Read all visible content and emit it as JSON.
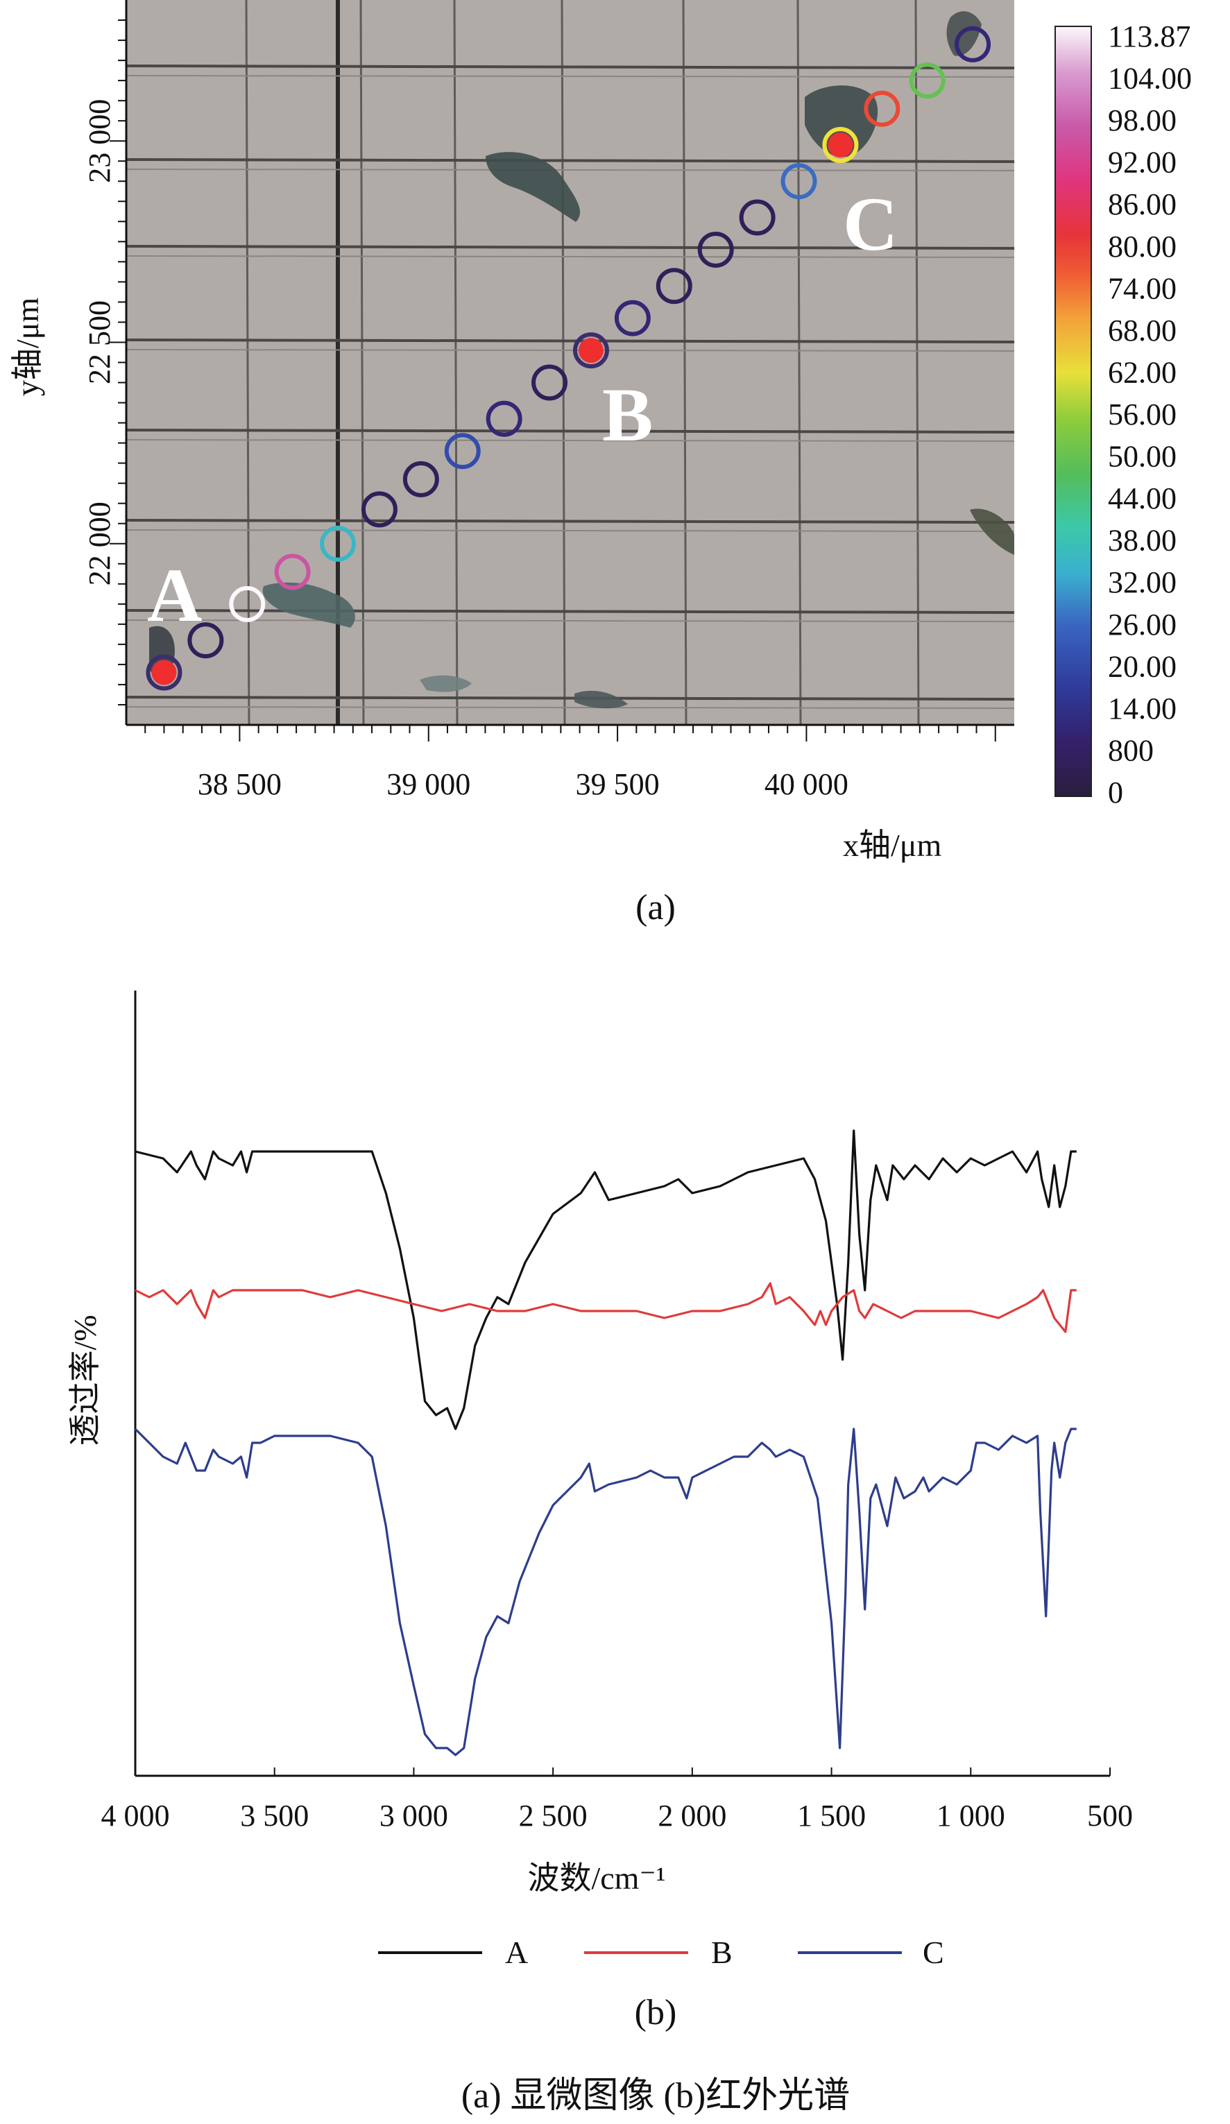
{
  "panel_a": {
    "caption": "(a)",
    "x_ticks": [
      "38 500",
      "39 000",
      "39 500",
      "40 000"
    ],
    "x_tick_values": [
      38500,
      39000,
      39500,
      40000
    ],
    "y_ticks": [
      "23 000",
      "22 500",
      "22 000"
    ],
    "y_tick_values": [
      23000,
      22500,
      22000
    ],
    "x_axis_label": "x轴/μm",
    "y_axis_label": "y轴/μm",
    "colorbar_labels": [
      "113.87",
      "104.00",
      "98.00",
      "92.00",
      "86.00",
      "80.00",
      "74.00",
      "68.00",
      "62.00",
      "56.00",
      "50.00",
      "44.00",
      "38.00",
      "32.00",
      "26.00",
      "20.00",
      "14.00",
      "800",
      "0"
    ],
    "point_labels": [
      "A",
      "B",
      "C"
    ]
  },
  "chart_data": [
    {
      "type": "scatter",
      "xlim": [
        38200,
        40550
      ],
      "ylim": [
        21550,
        23350
      ],
      "xlabel": "x轴/μm",
      "ylabel": "y轴/μm",
      "colorbar_range": [
        0,
        113.87
      ],
      "points": [
        {
          "x": 38300,
          "y": 21680,
          "value": 86,
          "filled": true,
          "label": "A"
        },
        {
          "x": 38410,
          "y": 21760,
          "value": 5
        },
        {
          "x": 38520,
          "y": 21850,
          "value": 113.87
        },
        {
          "x": 38640,
          "y": 21930,
          "value": 98
        },
        {
          "x": 38760,
          "y": 22000,
          "value": 35
        },
        {
          "x": 38870,
          "y": 22085,
          "value": 5
        },
        {
          "x": 38980,
          "y": 22160,
          "value": 5
        },
        {
          "x": 39090,
          "y": 22230,
          "value": 20
        },
        {
          "x": 39200,
          "y": 22310,
          "value": 10
        },
        {
          "x": 39320,
          "y": 22400,
          "value": 5
        },
        {
          "x": 39430,
          "y": 22480,
          "value": 86,
          "filled": true,
          "label": "B"
        },
        {
          "x": 39540,
          "y": 22560,
          "value": 10
        },
        {
          "x": 39650,
          "y": 22640,
          "value": 5
        },
        {
          "x": 39760,
          "y": 22730,
          "value": 5
        },
        {
          "x": 39870,
          "y": 22810,
          "value": 5
        },
        {
          "x": 39980,
          "y": 22900,
          "value": 26
        },
        {
          "x": 40090,
          "y": 22990,
          "value": 66,
          "filled": true,
          "label": "C"
        },
        {
          "x": 40200,
          "y": 23080,
          "value": 80
        },
        {
          "x": 40320,
          "y": 23150,
          "value": 50
        },
        {
          "x": 40440,
          "y": 23240,
          "value": 10
        }
      ]
    },
    {
      "type": "line",
      "xlabel": "波数/cm⁻¹",
      "ylabel": "透过率/%",
      "xlim": [
        4000,
        500
      ],
      "x_ticks": [
        "4 000",
        "3 500",
        "3 000",
        "2 500",
        "2 000",
        "1 500",
        "1 000",
        "500"
      ],
      "x_tick_values": [
        4000,
        3500,
        3000,
        2500,
        2000,
        1500,
        1000,
        500
      ],
      "ylim": [
        0,
        100
      ],
      "legend_position": "bottom",
      "series": [
        {
          "name": "A",
          "color": "#111111",
          "points": [
            [
              4000,
              82
            ],
            [
              3900,
              81
            ],
            [
              3850,
              79
            ],
            [
              3800,
              82
            ],
            [
              3780,
              80
            ],
            [
              3750,
              78
            ],
            [
              3720,
              82
            ],
            [
              3700,
              81
            ],
            [
              3650,
              80
            ],
            [
              3620,
              82
            ],
            [
              3600,
              79
            ],
            [
              3580,
              82
            ],
            [
              3500,
              82
            ],
            [
              3300,
              82
            ],
            [
              3150,
              82
            ],
            [
              3100,
              76
            ],
            [
              3050,
              68
            ],
            [
              3000,
              58
            ],
            [
              2960,
              46
            ],
            [
              2920,
              44
            ],
            [
              2880,
              45
            ],
            [
              2850,
              42
            ],
            [
              2820,
              45
            ],
            [
              2780,
              54
            ],
            [
              2740,
              58
            ],
            [
              2700,
              61
            ],
            [
              2660,
              60
            ],
            [
              2600,
              66
            ],
            [
              2500,
              73
            ],
            [
              2400,
              76
            ],
            [
              2350,
              79
            ],
            [
              2300,
              75
            ],
            [
              2200,
              76
            ],
            [
              2100,
              77
            ],
            [
              2050,
              78
            ],
            [
              2000,
              76
            ],
            [
              1900,
              77
            ],
            [
              1800,
              79
            ],
            [
              1700,
              80
            ],
            [
              1600,
              81
            ],
            [
              1560,
              78
            ],
            [
              1520,
              72
            ],
            [
              1480,
              60
            ],
            [
              1460,
              52
            ],
            [
              1440,
              66
            ],
            [
              1420,
              85
            ],
            [
              1400,
              70
            ],
            [
              1380,
              62
            ],
            [
              1360,
              75
            ],
            [
              1340,
              80
            ],
            [
              1300,
              75
            ],
            [
              1280,
              80
            ],
            [
              1240,
              78
            ],
            [
              1200,
              80
            ],
            [
              1150,
              78
            ],
            [
              1100,
              81
            ],
            [
              1050,
              79
            ],
            [
              1000,
              81
            ],
            [
              950,
              80
            ],
            [
              900,
              81
            ],
            [
              850,
              82
            ],
            [
              800,
              79
            ],
            [
              760,
              82
            ],
            [
              745,
              78
            ],
            [
              720,
              74
            ],
            [
              700,
              80
            ],
            [
              680,
              74
            ],
            [
              660,
              77
            ],
            [
              640,
              82
            ],
            [
              620,
              82
            ]
          ]
        },
        {
          "name": "B",
          "color": "#e03a3a",
          "points": [
            [
              4000,
              62
            ],
            [
              3950,
              61
            ],
            [
              3900,
              62
            ],
            [
              3850,
              60
            ],
            [
              3800,
              62
            ],
            [
              3780,
              60
            ],
            [
              3750,
              58
            ],
            [
              3720,
              62
            ],
            [
              3700,
              61
            ],
            [
              3650,
              62
            ],
            [
              3600,
              62
            ],
            [
              3500,
              62
            ],
            [
              3400,
              62
            ],
            [
              3300,
              61
            ],
            [
              3200,
              62
            ],
            [
              3100,
              61
            ],
            [
              3000,
              60
            ],
            [
              2900,
              59
            ],
            [
              2800,
              60
            ],
            [
              2700,
              59
            ],
            [
              2600,
              59
            ],
            [
              2500,
              60
            ],
            [
              2400,
              59
            ],
            [
              2300,
              59
            ],
            [
              2200,
              59
            ],
            [
              2100,
              58
            ],
            [
              2000,
              59
            ],
            [
              1900,
              59
            ],
            [
              1800,
              60
            ],
            [
              1750,
              61
            ],
            [
              1720,
              63
            ],
            [
              1700,
              60
            ],
            [
              1650,
              61
            ],
            [
              1600,
              59
            ],
            [
              1560,
              57
            ],
            [
              1540,
              59
            ],
            [
              1520,
              57
            ],
            [
              1500,
              59
            ],
            [
              1460,
              61
            ],
            [
              1420,
              62
            ],
            [
              1400,
              59
            ],
            [
              1380,
              58
            ],
            [
              1350,
              60
            ],
            [
              1300,
              59
            ],
            [
              1250,
              58
            ],
            [
              1200,
              59
            ],
            [
              1100,
              59
            ],
            [
              1000,
              59
            ],
            [
              900,
              58
            ],
            [
              850,
              59
            ],
            [
              800,
              60
            ],
            [
              760,
              61
            ],
            [
              740,
              62
            ],
            [
              720,
              60
            ],
            [
              700,
              58
            ],
            [
              680,
              57
            ],
            [
              660,
              56
            ],
            [
              640,
              62
            ],
            [
              620,
              62
            ]
          ]
        },
        {
          "name": "C",
          "color": "#2e3d8c",
          "points": [
            [
              4000,
              42
            ],
            [
              3950,
              40
            ],
            [
              3900,
              38
            ],
            [
              3850,
              37
            ],
            [
              3820,
              40
            ],
            [
              3800,
              38
            ],
            [
              3780,
              36
            ],
            [
              3750,
              36
            ],
            [
              3720,
              39
            ],
            [
              3700,
              38
            ],
            [
              3650,
              37
            ],
            [
              3620,
              38
            ],
            [
              3600,
              35
            ],
            [
              3580,
              40
            ],
            [
              3550,
              40
            ],
            [
              3500,
              41
            ],
            [
              3400,
              41
            ],
            [
              3300,
              41
            ],
            [
              3200,
              40
            ],
            [
              3150,
              38
            ],
            [
              3100,
              28
            ],
            [
              3050,
              14
            ],
            [
              3000,
              5
            ],
            [
              2960,
              -2
            ],
            [
              2920,
              -4
            ],
            [
              2880,
              -4
            ],
            [
              2850,
              -5
            ],
            [
              2820,
              -4
            ],
            [
              2780,
              6
            ],
            [
              2740,
              12
            ],
            [
              2700,
              15
            ],
            [
              2660,
              14
            ],
            [
              2620,
              20
            ],
            [
              2550,
              27
            ],
            [
              2500,
              31
            ],
            [
              2450,
              33
            ],
            [
              2400,
              35
            ],
            [
              2370,
              37
            ],
            [
              2350,
              33
            ],
            [
              2300,
              34
            ],
            [
              2200,
              35
            ],
            [
              2150,
              36
            ],
            [
              2100,
              35
            ],
            [
              2050,
              35
            ],
            [
              2020,
              32
            ],
            [
              2000,
              35
            ],
            [
              1950,
              36
            ],
            [
              1900,
              37
            ],
            [
              1850,
              38
            ],
            [
              1800,
              38
            ],
            [
              1750,
              40
            ],
            [
              1720,
              39
            ],
            [
              1700,
              38
            ],
            [
              1650,
              39
            ],
            [
              1600,
              38
            ],
            [
              1550,
              32
            ],
            [
              1500,
              14
            ],
            [
              1470,
              -4
            ],
            [
              1450,
              18
            ],
            [
              1440,
              34
            ],
            [
              1420,
              42
            ],
            [
              1400,
              30
            ],
            [
              1380,
              16
            ],
            [
              1360,
              32
            ],
            [
              1340,
              34
            ],
            [
              1300,
              28
            ],
            [
              1270,
              35
            ],
            [
              1240,
              32
            ],
            [
              1200,
              33
            ],
            [
              1170,
              35
            ],
            [
              1150,
              33
            ],
            [
              1100,
              35
            ],
            [
              1050,
              34
            ],
            [
              1000,
              36
            ],
            [
              980,
              40
            ],
            [
              950,
              40
            ],
            [
              900,
              39
            ],
            [
              850,
              41
            ],
            [
              800,
              40
            ],
            [
              760,
              41
            ],
            [
              750,
              30
            ],
            [
              730,
              15
            ],
            [
              710,
              36
            ],
            [
              700,
              40
            ],
            [
              680,
              35
            ],
            [
              660,
              40
            ],
            [
              640,
              42
            ],
            [
              620,
              42
            ]
          ]
        }
      ]
    }
  ],
  "panel_b": {
    "caption": "(b)",
    "x_axis_label": "波数/cm⁻¹",
    "y_axis_label": "透过率/%",
    "legend": [
      "A",
      "B",
      "C"
    ]
  },
  "figure_caption": "(a) 显微图像    (b)红外光谱"
}
